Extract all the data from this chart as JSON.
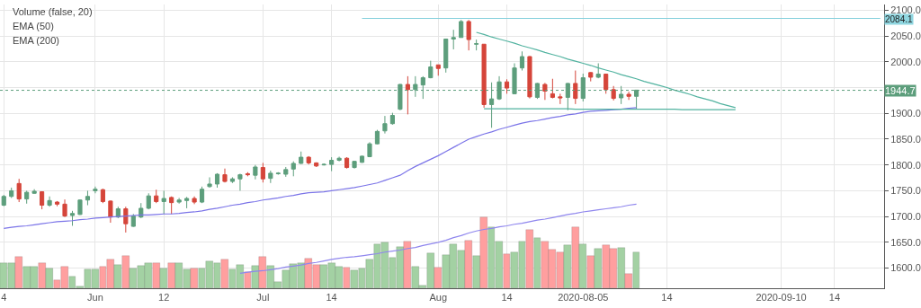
{
  "chart_data": {
    "type": "candlestick",
    "categories": [
      "4",
      null,
      null,
      null,
      null,
      null,
      null,
      null,
      null,
      null,
      null,
      null,
      "Jun",
      null,
      null,
      null,
      null,
      null,
      null,
      null,
      null,
      "12",
      null,
      null,
      null,
      null,
      null,
      null,
      null,
      null,
      null,
      null,
      null,
      null,
      "Jul",
      null,
      null,
      null,
      null,
      null,
      null,
      null,
      null,
      "14",
      null,
      null,
      null,
      null,
      null,
      null,
      null,
      null,
      null,
      null,
      null,
      null,
      null,
      "Aug",
      null,
      null,
      null,
      null,
      null,
      null,
      null,
      null,
      "14",
      null,
      null,
      null,
      null,
      null,
      null,
      null,
      null,
      null,
      "2020-08-05",
      null,
      null,
      null,
      null,
      null,
      null,
      null,
      null,
      null,
      null,
      "14",
      null,
      null,
      null,
      null,
      null,
      null,
      null,
      null,
      null,
      null,
      null,
      null,
      null,
      null,
      "2020-09-10",
      null,
      null,
      null,
      null,
      null,
      null,
      "14",
      null,
      null,
      null,
      null,
      null,
      null
    ],
    "ohlc": [
      [
        1722,
        1742,
        1720,
        1739
      ],
      [
        1739,
        1756,
        1736,
        1750
      ],
      [
        1764,
        1773,
        1728,
        1734
      ],
      [
        1734,
        1750,
        1725,
        1747
      ],
      [
        1745,
        1753,
        1744,
        1749
      ],
      [
        1748,
        1749,
        1714,
        1722
      ],
      [
        1722,
        1739,
        1719,
        1731
      ],
      [
        1728,
        1730,
        1720,
        1724
      ],
      [
        1724,
        1733,
        1699,
        1701
      ],
      [
        1702,
        1711,
        1682,
        1706
      ],
      [
        1704,
        1733,
        1703,
        1732
      ],
      [
        1732,
        1750,
        1722,
        1739
      ],
      [
        1750,
        1758,
        1745,
        1753
      ],
      [
        1752,
        1754,
        1726,
        1729
      ],
      [
        1730,
        1731,
        1688,
        1699
      ],
      [
        1699,
        1719,
        1697,
        1715
      ],
      [
        1715,
        1719,
        1669,
        1686
      ],
      [
        1681,
        1705,
        1680,
        1701
      ],
      [
        1699,
        1726,
        1697,
        1716
      ],
      [
        1716,
        1745,
        1714,
        1740
      ],
      [
        1740,
        1752,
        1726,
        1729
      ],
      [
        1729,
        1750,
        1705,
        1735
      ],
      [
        1737,
        1739,
        1705,
        1727
      ],
      [
        1728,
        1736,
        1725,
        1732
      ],
      [
        1731,
        1738,
        1716,
        1735
      ],
      [
        1735,
        1739,
        1724,
        1728
      ],
      [
        1728,
        1758,
        1726,
        1753
      ],
      [
        1758,
        1776,
        1756,
        1763
      ],
      [
        1763,
        1784,
        1756,
        1782
      ],
      [
        1781,
        1793,
        1766,
        1768
      ],
      [
        1768,
        1776,
        1765,
        1773
      ],
      [
        1773,
        1783,
        1750,
        1781
      ],
      [
        1783,
        1786,
        1778,
        1781
      ],
      [
        1780,
        1800,
        1772,
        1796
      ],
      [
        1795,
        1804,
        1766,
        1773
      ],
      [
        1774,
        1789,
        1765,
        1784
      ],
      [
        1783,
        1786,
        1781,
        1784
      ],
      [
        1782,
        1796,
        1777,
        1791
      ],
      [
        1792,
        1807,
        1778,
        1803
      ],
      [
        1803,
        1826,
        1802,
        1815
      ],
      [
        1815,
        1817,
        1801,
        1804
      ],
      [
        1804,
        1805,
        1796,
        1798
      ],
      [
        1800,
        1803,
        1799,
        1801
      ],
      [
        1801,
        1815,
        1788,
        1809
      ],
      [
        1809,
        1816,
        1807,
        1813
      ],
      [
        1813,
        1815,
        1793,
        1795
      ],
      [
        1795,
        1808,
        1793,
        1807
      ],
      [
        1805,
        1818,
        1804,
        1817
      ],
      [
        1816,
        1844,
        1815,
        1841
      ],
      [
        1841,
        1868,
        1840,
        1865
      ],
      [
        1866,
        1895,
        1861,
        1880
      ],
      [
        1880,
        1901,
        1878,
        1896
      ],
      [
        1908,
        1957,
        1906,
        1956
      ],
      [
        1956,
        1972,
        1898,
        1946
      ],
      [
        1946,
        1972,
        1932,
        1956
      ],
      [
        1955,
        1972,
        1928,
        1969
      ],
      [
        1969,
        2002,
        1968,
        1990
      ],
      [
        1994,
        1994,
        1973,
        1987
      ],
      [
        1988,
        2044,
        1979,
        2044
      ],
      [
        2044,
        2062,
        2024,
        2047
      ],
      [
        2047,
        2081,
        2047,
        2078
      ],
      [
        2078,
        2081,
        2022,
        2043
      ],
      [
        2034,
        2043,
        2022,
        2035
      ],
      [
        2034,
        2034,
        1911,
        1917
      ],
      [
        1917,
        1960,
        1872,
        1928
      ],
      [
        1928,
        1972,
        1926,
        1961
      ],
      [
        1961,
        1966,
        1938,
        1949
      ],
      [
        1938,
        1997,
        1937,
        1988
      ],
      [
        1988,
        2020,
        1983,
        2010
      ],
      [
        2010,
        2011,
        1929,
        1932
      ],
      [
        1931,
        1959,
        1928,
        1958
      ],
      [
        1956,
        1959,
        1926,
        1943
      ],
      [
        1938,
        1967,
        1929,
        1931
      ],
      [
        1932,
        1938,
        1918,
        1930
      ],
      [
        1931,
        1959,
        1906,
        1958
      ],
      [
        1958,
        1983,
        1918,
        1929
      ],
      [
        1929,
        1977,
        1923,
        1969
      ],
      [
        1979,
        1980,
        1962,
        1970
      ],
      [
        1970,
        1997,
        1968,
        1976
      ],
      [
        1976,
        1977,
        1938,
        1946
      ],
      [
        1946,
        1953,
        1925,
        1929
      ],
      [
        1930,
        1953,
        1918,
        1937
      ],
      [
        1937,
        1942,
        1926,
        1933
      ],
      [
        1933,
        1945,
        1909,
        1945
      ],
      null,
      null,
      null,
      null,
      null,
      null,
      null,
      null,
      null,
      null,
      null,
      null,
      null,
      null,
      null,
      null,
      null,
      null,
      null,
      null,
      null,
      null,
      null,
      null,
      null,
      null,
      null,
      null,
      null,
      null,
      null,
      null
    ],
    "colors": [
      "#5d9e7c",
      "#5d9e7c",
      "#d5453a",
      "#5d9e7c",
      "#5d9e7c",
      "#d5453a",
      "#5d9e7c",
      "#d5453a",
      "#d5453a",
      "#5d9e7c",
      "#5d9e7c",
      "#5d9e7c",
      "#5d9e7c",
      "#d5453a",
      "#d5453a",
      "#5d9e7c",
      "#d5453a",
      "#5d9e7c",
      "#5d9e7c",
      "#5d9e7c",
      "#d5453a",
      "#5d9e7c",
      "#d5453a",
      "#5d9e7c",
      "#5d9e7c",
      "#d5453a",
      "#5d9e7c",
      "#5d9e7c",
      "#5d9e7c",
      "#d5453a",
      "#5d9e7c",
      "#5d9e7c",
      "#d5453a",
      "#5d9e7c",
      "#d5453a",
      "#5d9e7c",
      "#5d9e7c",
      "#5d9e7c",
      "#5d9e7c",
      "#5d9e7c",
      "#d5453a",
      "#d5453a",
      "#5d9e7c",
      "#5d9e7c",
      "#5d9e7c",
      "#d5453a",
      "#5d9e7c",
      "#5d9e7c",
      "#5d9e7c",
      "#5d9e7c",
      "#5d9e7c",
      "#5d9e7c",
      "#5d9e7c",
      "#d5453a",
      "#5d9e7c",
      "#5d9e7c",
      "#5d9e7c",
      "#d5453a",
      "#5d9e7c",
      "#5d9e7c",
      "#5d9e7c",
      "#d5453a",
      "#5d9e7c",
      "#d5453a",
      "#5d9e7c",
      "#5d9e7c",
      "#d5453a",
      "#5d9e7c",
      "#5d9e7c",
      "#d5453a",
      "#5d9e7c",
      "#d5453a",
      "#d5453a",
      "#d5453a",
      "#5d9e7c",
      "#d5453a",
      "#5d9e7c",
      "#d5453a",
      "#5d9e7c",
      "#d5453a",
      "#d5453a",
      "#5d9e7c",
      "#d5453a",
      "#5d9e7c",
      null,
      null,
      null,
      null,
      null,
      null,
      null,
      null,
      null,
      null,
      null,
      null,
      null,
      null,
      null,
      null,
      null,
      null,
      null,
      null,
      null,
      null,
      null,
      null,
      null,
      null,
      null,
      null,
      null,
      null,
      null,
      null
    ],
    "series": [
      {
        "type": "bar",
        "values": [
          48,
          48,
          61,
          42,
          41,
          48,
          38,
          15,
          41,
          23,
          4,
          36,
          36,
          42,
          55,
          46,
          62,
          38,
          43,
          48,
          49,
          38,
          48,
          48,
          36,
          39,
          39,
          52,
          48,
          56,
          36,
          46,
          32,
          43,
          61,
          43,
          13,
          35,
          47,
          48,
          58,
          45,
          46,
          49,
          42,
          40,
          34,
          38,
          56,
          85,
          89,
          59,
          80,
          91,
          42,
          6,
          68,
          40,
          64,
          85,
          73,
          93,
          63,
          137,
          119,
          91,
          66,
          70,
          90,
          114,
          98,
          91,
          74,
          69,
          83,
          119,
          86,
          63,
          76,
          83,
          76,
          78,
          27,
          69,
          null,
          null,
          null,
          null,
          null,
          null,
          null,
          null,
          null,
          null,
          null,
          null,
          null,
          null,
          null,
          null,
          null,
          null,
          null,
          null,
          null,
          null,
          null,
          null,
          null,
          null,
          null,
          null,
          null,
          null,
          null,
          null
        ],
        "base": [
          1561,
          1561,
          1561,
          1561,
          1561,
          1561,
          1561,
          1561,
          1561,
          1561,
          1561,
          1561,
          1561,
          1561,
          1561,
          1561,
          1561,
          1561,
          1561,
          1561,
          1561,
          1561,
          1561,
          1561,
          1561,
          1561,
          1561,
          1561,
          1561,
          1561,
          1561,
          1561,
          1561,
          1561,
          1561,
          1561,
          1561,
          1561,
          1561,
          1561,
          1561,
          1561,
          1561,
          1561,
          1561,
          1561,
          1561,
          1561,
          1561,
          1561,
          1561,
          1561,
          1561,
          1561,
          1561,
          1561,
          1561,
          1561,
          1561,
          1561,
          1561,
          1561,
          1561,
          1561,
          1561,
          1561,
          1561,
          1561,
          1561,
          1561,
          1561,
          1561,
          1561,
          1561,
          1561,
          1561,
          1561,
          1561,
          1561,
          1561,
          1561,
          1561,
          1561,
          1561,
          null,
          null,
          null,
          null,
          null,
          null,
          null,
          null,
          null,
          null,
          null,
          null,
          null,
          null,
          null,
          null,
          null,
          null,
          null,
          null,
          null,
          null,
          null,
          null,
          null,
          null,
          null,
          null,
          null,
          null,
          null,
          null
        ],
        "colors": [
          "#a3d1a3",
          "#a3d1a3",
          "#ff9f9f",
          "#a3d1a3",
          "#a3d1a3",
          "#ff9f9f",
          "#a3d1a3",
          "#ff9f9f",
          "#ff9f9f",
          "#a3d1a3",
          "#a3d1a3",
          "#a3d1a3",
          "#a3d1a3",
          "#ff9f9f",
          "#ff9f9f",
          "#a3d1a3",
          "#ff9f9f",
          "#a3d1a3",
          "#a3d1a3",
          "#a3d1a3",
          "#ff9f9f",
          "#a3d1a3",
          "#ff9f9f",
          "#a3d1a3",
          "#a3d1a3",
          "#ff9f9f",
          "#a3d1a3",
          "#a3d1a3",
          "#a3d1a3",
          "#ff9f9f",
          "#a3d1a3",
          "#a3d1a3",
          "#ff9f9f",
          "#a3d1a3",
          "#ff9f9f",
          "#a3d1a3",
          "#a3d1a3",
          "#a3d1a3",
          "#a3d1a3",
          "#a3d1a3",
          "#ff9f9f",
          "#ff9f9f",
          "#a3d1a3",
          "#a3d1a3",
          "#a3d1a3",
          "#ff9f9f",
          "#a3d1a3",
          "#a3d1a3",
          "#a3d1a3",
          "#a3d1a3",
          "#a3d1a3",
          "#a3d1a3",
          "#a3d1a3",
          "#ff9f9f",
          "#a3d1a3",
          "#a3d1a3",
          "#a3d1a3",
          "#ff9f9f",
          "#a3d1a3",
          "#a3d1a3",
          "#a3d1a3",
          "#ff9f9f",
          "#a3d1a3",
          "#ff9f9f",
          "#a3d1a3",
          "#a3d1a3",
          "#ff9f9f",
          "#a3d1a3",
          "#a3d1a3",
          "#ff9f9f",
          "#a3d1a3",
          "#ff9f9f",
          "#ff9f9f",
          "#ff9f9f",
          "#a3d1a3",
          "#ff9f9f",
          "#a3d1a3",
          "#ff9f9f",
          "#a3d1a3",
          "#ff9f9f",
          "#ff9f9f",
          "#a3d1a3",
          "#ff9f9f",
          "#a3d1a3",
          null,
          null,
          null,
          null,
          null,
          null,
          null,
          null,
          null,
          null,
          null,
          null,
          null,
          null,
          null,
          null,
          null,
          null,
          null,
          null,
          null,
          null,
          null,
          null,
          null,
          null,
          null,
          null,
          null,
          null,
          null,
          null
        ]
      },
      {
        "type": "line",
        "color": "#7b74e8",
        "values": [
          1677,
          1679,
          1681,
          1682,
          1684,
          1686,
          1688,
          1690,
          1691,
          1692,
          1694,
          1695,
          1697,
          1698,
          1699,
          1700,
          1701,
          1702,
          1703,
          1703,
          1704,
          1705,
          1705,
          1706,
          1708,
          1709,
          1711,
          1714,
          1716,
          1719,
          1722,
          1724,
          1727,
          1729,
          1732,
          1734,
          1736,
          1739,
          1741,
          1744,
          1746,
          1747,
          1748,
          1750,
          1752,
          1754,
          1756,
          1759,
          1762,
          1765,
          1770,
          1775,
          1780,
          1789,
          1797,
          1804,
          1811,
          1818,
          1826,
          1834,
          1842,
          1850,
          1855,
          1860,
          1864,
          1869,
          1873,
          1877,
          1881,
          1884,
          1886,
          1889,
          1892,
          1894,
          1897,
          1899,
          1902,
          1904,
          1905,
          1906,
          1907,
          1908,
          1910,
          1911,
          null,
          null,
          null,
          null,
          null,
          null,
          null,
          null,
          null,
          null,
          null,
          null,
          null,
          null,
          null,
          null,
          null,
          null,
          null,
          null,
          null,
          null,
          null,
          null,
          null,
          null,
          null,
          null,
          null,
          null,
          null,
          null
        ]
      },
      {
        "type": "line",
        "color": "#8f86ee",
        "values": [
          null,
          null,
          null,
          null,
          null,
          null,
          null,
          null,
          null,
          null,
          null,
          null,
          null,
          null,
          null,
          null,
          null,
          null,
          null,
          null,
          null,
          null,
          null,
          null,
          null,
          null,
          null,
          null,
          null,
          null,
          null,
          1590,
          1592,
          1594,
          1595,
          1597,
          1599,
          1602,
          1604,
          1606,
          1609,
          1611,
          1614,
          1617,
          1619,
          1621,
          1622,
          1624,
          1626,
          1628,
          1631,
          1633,
          1635,
          1638,
          1640,
          1644,
          1647,
          1650,
          1654,
          1659,
          1663,
          1668,
          1672,
          1675,
          1677,
          1680,
          1682,
          1685,
          1687,
          1690,
          1693,
          1695,
          1698,
          1701,
          1704,
          1706,
          1709,
          1711,
          1713,
          1715,
          1717,
          1719,
          1722,
          1724,
          null,
          null,
          null,
          null,
          null,
          null,
          null,
          null,
          null,
          null,
          null,
          null,
          null,
          null,
          null,
          null,
          null,
          null,
          null,
          null,
          null,
          null,
          null,
          null,
          null,
          null,
          null,
          null,
          null,
          null,
          null,
          null
        ]
      },
      {
        "type": "line",
        "color": "#86d0dc",
        "values": [
          null,
          null,
          null,
          null,
          null,
          null,
          null,
          null,
          null,
          null,
          null,
          null,
          null,
          null,
          null,
          null,
          null,
          null,
          null,
          null,
          null,
          null,
          null,
          null,
          null,
          null,
          null,
          null,
          null,
          null,
          null,
          null,
          null,
          null,
          null,
          null,
          null,
          null,
          null,
          null,
          null,
          null,
          null,
          null,
          null,
          null,
          null,
          2084,
          2084,
          2084,
          2084,
          2084,
          2084,
          2084,
          2084,
          2084,
          2084,
          2084,
          2084,
          2084,
          2084,
          2084,
          2084,
          2084,
          2084,
          2084,
          2084,
          2084,
          2084,
          2084,
          2084,
          2084,
          2084,
          2084,
          2084,
          2084,
          2084,
          2084,
          2084,
          2084,
          2084,
          2084,
          2084,
          2084,
          2084,
          2084,
          2084,
          2084,
          2084,
          2084,
          2084,
          2084,
          2084,
          2084,
          2084,
          2084,
          2084,
          2084,
          2084,
          2084,
          2084,
          2084,
          2084,
          2084,
          2084,
          2084,
          2084,
          2084,
          2084,
          2084,
          2084,
          2084,
          2084,
          2084,
          2084,
          2084
        ]
      },
      {
        "type": "line",
        "color": "#52b3a0",
        "values": [
          null,
          null,
          null,
          null,
          null,
          null,
          null,
          null,
          null,
          null,
          null,
          null,
          null,
          null,
          null,
          null,
          null,
          null,
          null,
          null,
          null,
          null,
          null,
          null,
          null,
          null,
          null,
          null,
          null,
          null,
          null,
          null,
          null,
          null,
          null,
          null,
          null,
          null,
          null,
          null,
          null,
          null,
          null,
          null,
          null,
          null,
          null,
          null,
          null,
          null,
          null,
          null,
          null,
          null,
          null,
          null,
          null,
          null,
          null,
          null,
          null,
          null,
          2057,
          2053,
          2048,
          2044,
          2040,
          2036,
          2031,
          2027,
          2023,
          2018,
          2014,
          2010,
          2005,
          2001,
          1997,
          1993,
          1988,
          1984,
          1980,
          1975,
          1971,
          1967,
          1962,
          1958,
          1954,
          1950,
          1945,
          1941,
          1937,
          1932,
          1928,
          1924,
          1919,
          1915,
          1911,
          null,
          null,
          null,
          null,
          null,
          null,
          null,
          null,
          null,
          null,
          null,
          null,
          null,
          null,
          null,
          null,
          null,
          null,
          null
        ]
      },
      {
        "type": "line",
        "color": "#52b3a0",
        "values": [
          null,
          null,
          null,
          null,
          null,
          null,
          null,
          null,
          null,
          null,
          null,
          null,
          null,
          null,
          null,
          null,
          null,
          null,
          null,
          null,
          null,
          null,
          null,
          null,
          null,
          null,
          null,
          null,
          null,
          null,
          null,
          null,
          null,
          null,
          null,
          null,
          null,
          null,
          null,
          null,
          null,
          null,
          null,
          null,
          null,
          null,
          null,
          null,
          null,
          null,
          null,
          null,
          null,
          null,
          null,
          null,
          null,
          null,
          null,
          null,
          null,
          null,
          null,
          1909,
          1909,
          1909,
          1909,
          1909,
          1909,
          1909,
          1909,
          1909,
          1909,
          1909,
          1909,
          1908,
          1908,
          1908,
          1908,
          1908,
          1908,
          1908,
          1908,
          1908,
          1908,
          1908,
          1908,
          1908,
          1908,
          1907,
          1907,
          1907,
          1907,
          1907,
          1907,
          1907,
          1907,
          null,
          null,
          null,
          null,
          null,
          null,
          null,
          null,
          null,
          null,
          null,
          null,
          null,
          null,
          null,
          null,
          null,
          null,
          null
        ]
      }
    ],
    "ylim": [
      1561,
      2111
    ],
    "yticks": [
      {
        "value": 1600,
        "label": "1600.0"
      },
      {
        "value": 1650,
        "label": "1650.0"
      },
      {
        "value": 1700,
        "label": "1700.0"
      },
      {
        "value": 1750,
        "label": "1750.0"
      },
      {
        "value": 1800,
        "label": "1800.0"
      },
      {
        "value": 1850,
        "label": "1850.0"
      },
      {
        "value": 1900,
        "label": "1900.0"
      },
      {
        "value": 1950,
        "label": null
      },
      {
        "value": 2000,
        "label": "2000.0"
      },
      {
        "value": 2050,
        "label": "2050.0"
      },
      {
        "value": 2100,
        "label": "2100.0"
      }
    ],
    "grid": true,
    "ref_lines": [
      {
        "axis": "y",
        "value": 1944.7,
        "label": "1944.7",
        "color": "#5d9e7c",
        "line_style": "dotted"
      }
    ],
    "annotations": [
      "Volume (false, 20)",
      "EMA (50)",
      "EMA (200)",
      "2084.1"
    ]
  }
}
